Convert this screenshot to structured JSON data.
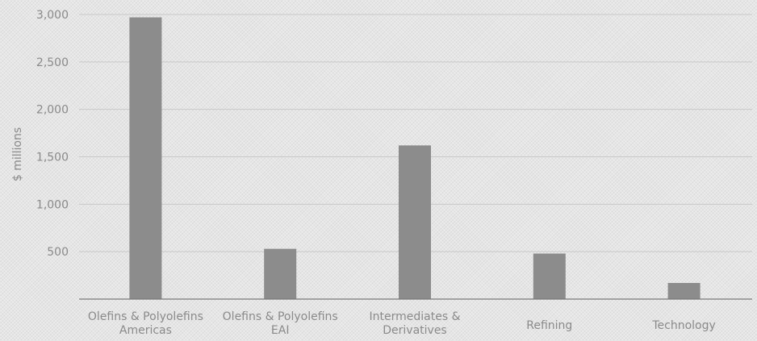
{
  "chart_data": {
    "type": "bar",
    "categories": [
      [
        "Olefins & Polyolefins",
        "Americas"
      ],
      [
        "Olefins & Polyolefins",
        "EAI"
      ],
      [
        "Intermediates &",
        "Derivatives"
      ],
      [
        "Refining"
      ],
      [
        "Technology"
      ]
    ],
    "values": [
      2970,
      530,
      1620,
      480,
      170
    ],
    "ylabel": "$ millions",
    "ylim": [
      0,
      3000
    ],
    "yticks": [
      500,
      1000,
      1500,
      2000,
      2500,
      3000
    ],
    "ytick_labels": [
      "500",
      "1,000",
      "1,500",
      "2,000",
      "2,500",
      "3,000"
    ],
    "grid": true,
    "legend": "none",
    "bar_color": "#8c8c8c"
  }
}
